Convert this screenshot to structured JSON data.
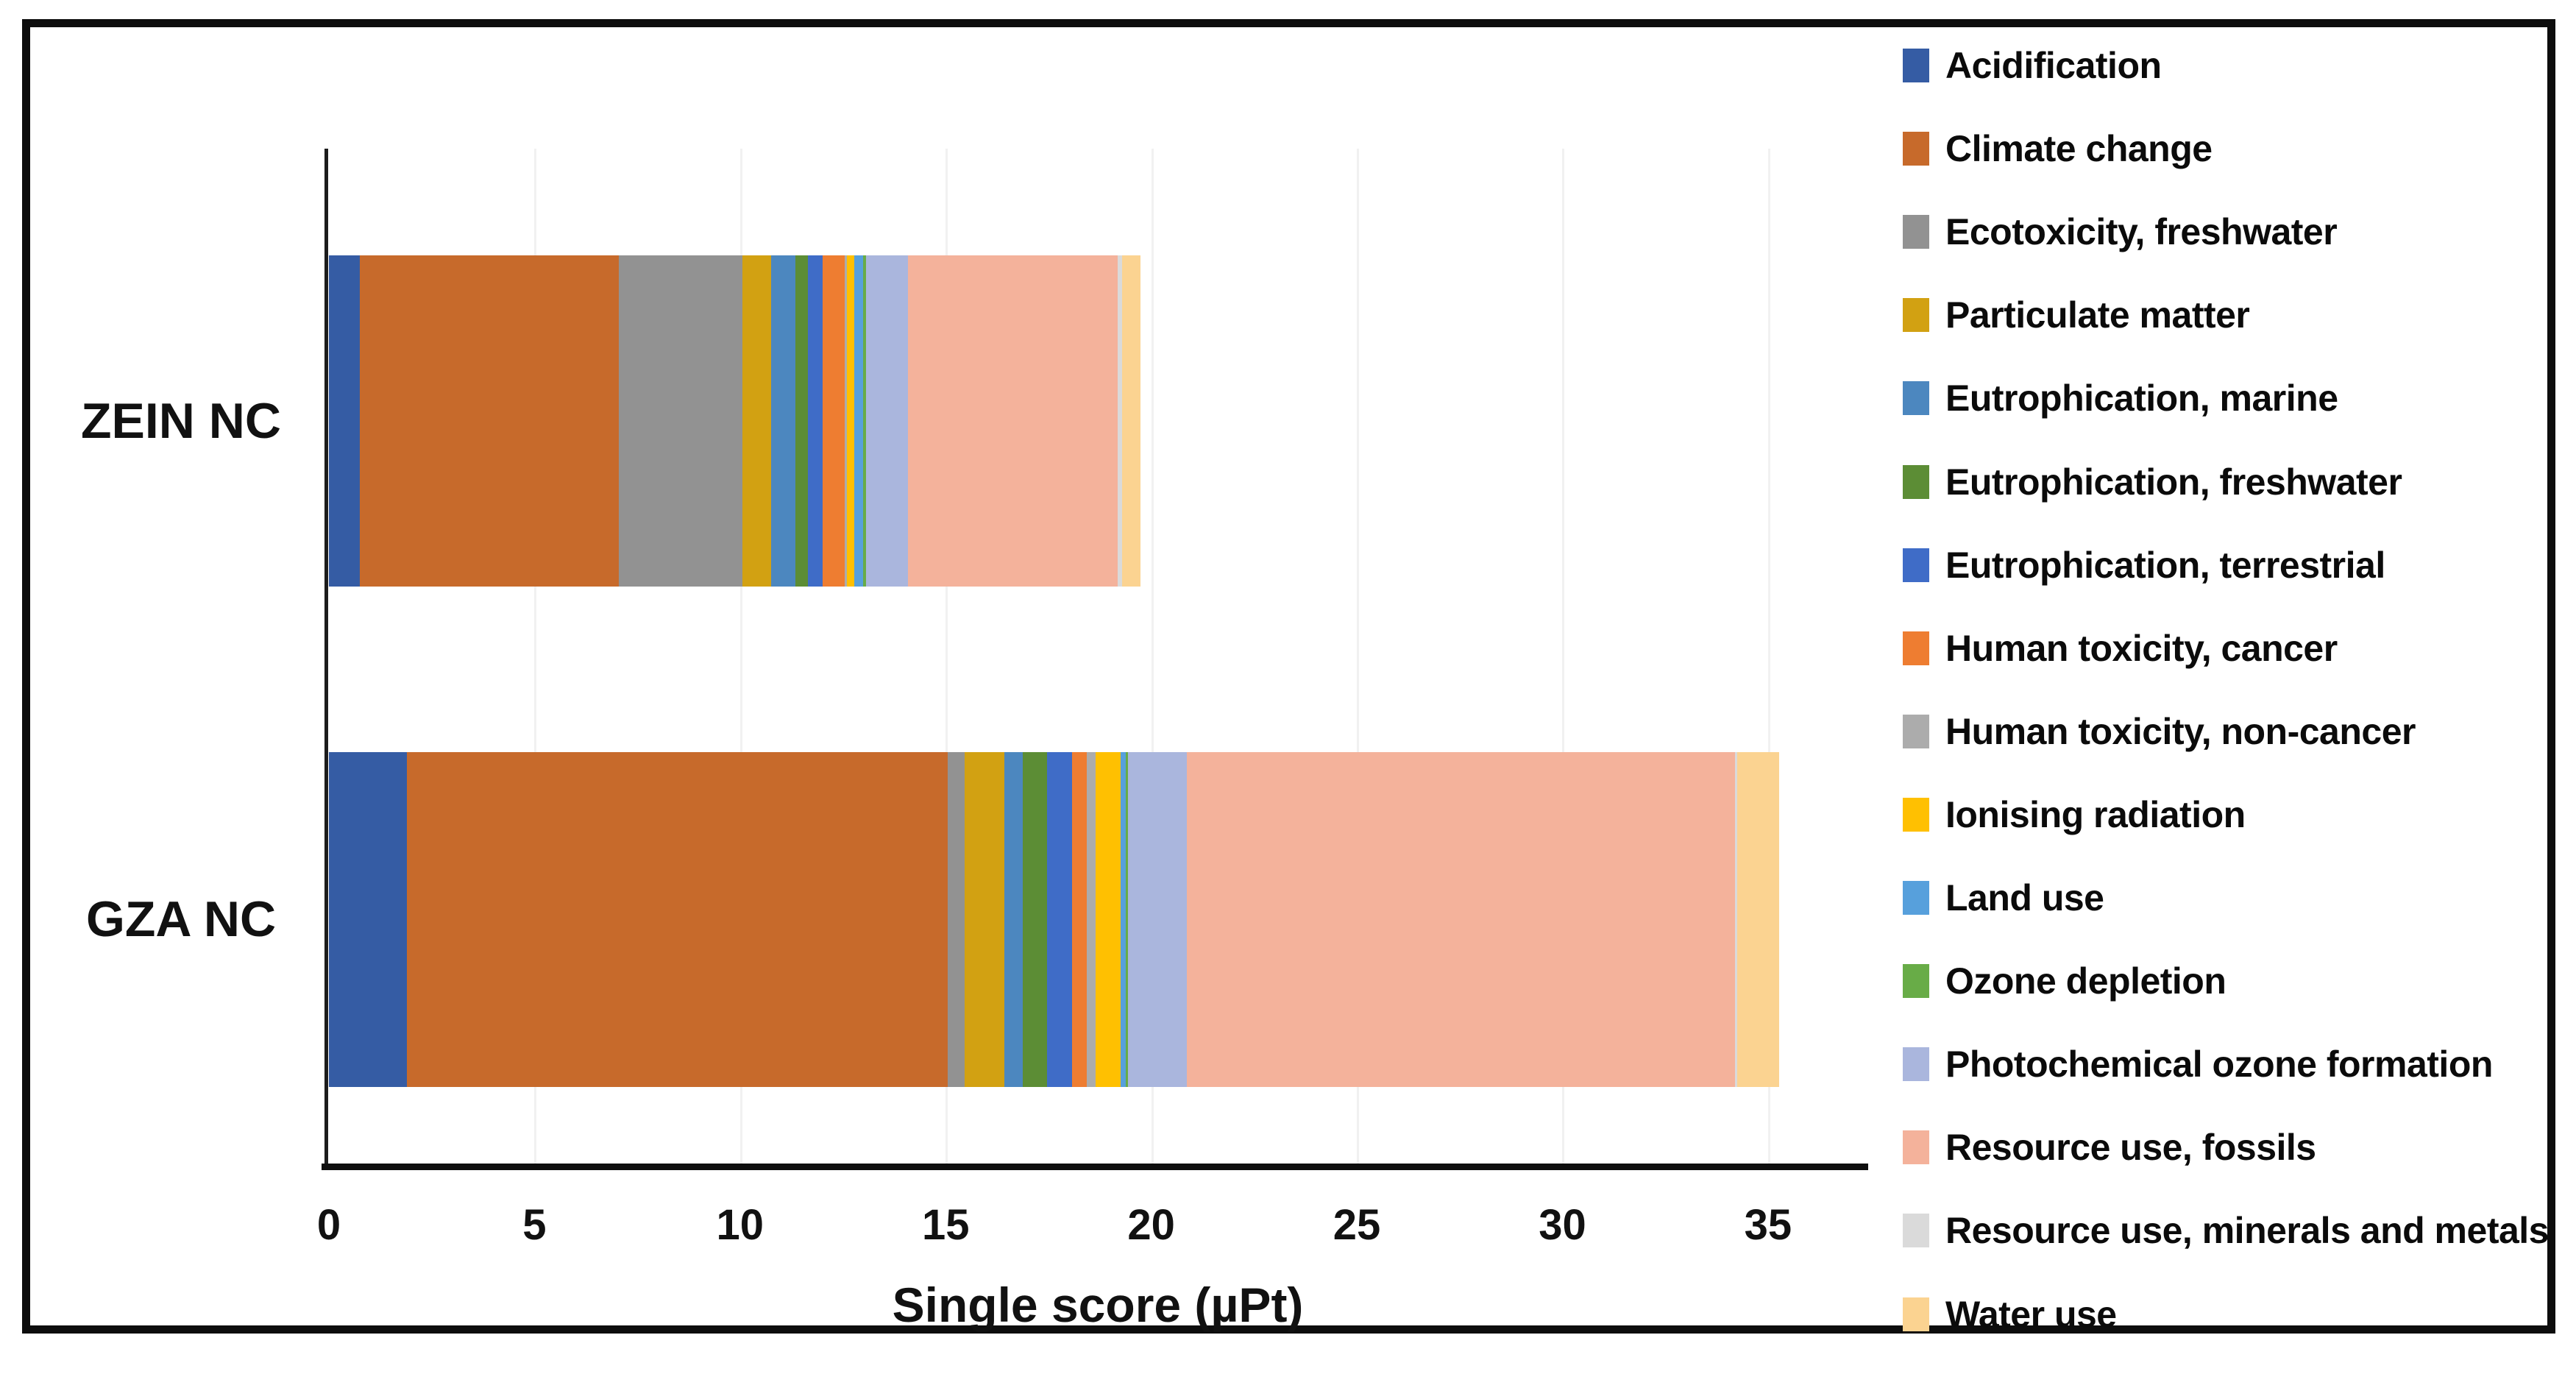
{
  "chart_data": {
    "type": "bar",
    "orientation": "horizontal",
    "stacked": true,
    "xlabel": "Single score (µPt)",
    "categories": [
      "ZEIN NC",
      "GZA NC"
    ],
    "x_ticks": [
      0,
      5,
      10,
      15,
      20,
      25,
      30,
      35
    ],
    "xlim": [
      0,
      37.4
    ],
    "grid": "vertical, very light, every 5 units",
    "legend_position": "right",
    "series": [
      {
        "name": "Acidification",
        "color": "#355CA4",
        "values": [
          0.75,
          1.9
        ]
      },
      {
        "name": "Climate change",
        "color": "#C76A2B",
        "values": [
          6.3,
          13.15
        ]
      },
      {
        "name": "Ecotoxicity, freshwater",
        "color": "#929292",
        "values": [
          3.0,
          0.41
        ]
      },
      {
        "name": "Particulate matter",
        "color": "#D2A112",
        "values": [
          0.7,
          0.97
        ]
      },
      {
        "name": "Eutrophication, marine",
        "color": "#4C87BF",
        "values": [
          0.6,
          0.45
        ]
      },
      {
        "name": "Eutrophication, freshwater",
        "color": "#5C8D35",
        "values": [
          0.3,
          0.59
        ]
      },
      {
        "name": "Eutrophication, terrestrial",
        "color": "#3F6CC7",
        "values": [
          0.36,
          0.61
        ]
      },
      {
        "name": "Human toxicity, cancer",
        "color": "#EE7D31",
        "values": [
          0.54,
          0.36
        ]
      },
      {
        "name": "Human toxicity, non-cancer",
        "color": "#ACACAC",
        "values": [
          0.05,
          0.2
        ]
      },
      {
        "name": "Ionising radiation",
        "color": "#FFC001",
        "values": [
          0.18,
          0.61
        ]
      },
      {
        "name": "Land use",
        "color": "#57A0DC",
        "values": [
          0.21,
          0.14
        ]
      },
      {
        "name": "Ozone depletion",
        "color": "#68AC47",
        "values": [
          0.07,
          0.05
        ]
      },
      {
        "name": "Photochemical ozone formation",
        "color": "#AAB6DD",
        "values": [
          1.02,
          1.43
        ]
      },
      {
        "name": "Resource use, fossils",
        "color": "#F4B29B",
        "values": [
          5.1,
          13.33
        ]
      },
      {
        "name": "Resource use, minerals and metals",
        "color": "#DADADA",
        "values": [
          0.11,
          0.05
        ]
      },
      {
        "name": "Water use",
        "color": "#FBD391",
        "values": [
          0.45,
          1.03
        ]
      }
    ],
    "totals": {
      "ZEIN NC": 19.74,
      "GZA NC": 35.28
    }
  }
}
